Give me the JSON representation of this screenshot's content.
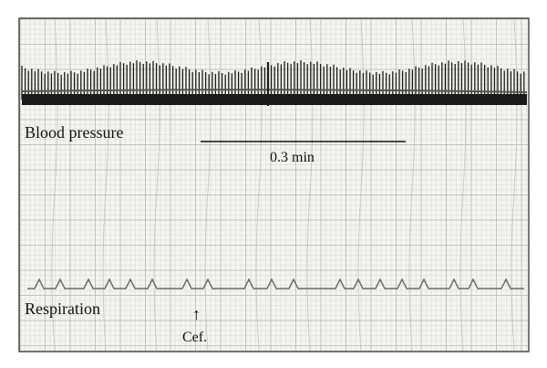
{
  "labels": {
    "blood_pressure": "Blood pressure",
    "scale_bar": "0.3 min",
    "respiration": "Respiration",
    "arrow_glyph": "↑",
    "cef": "Cef."
  },
  "colors": {
    "paper": "#f4f4f2",
    "grid_fine": "#d6d6d4",
    "grid_major": "#b9b9b6",
    "trace": "#1a1a1a",
    "resp_trace": "#6a6a6a",
    "frame": "#222222"
  }
}
